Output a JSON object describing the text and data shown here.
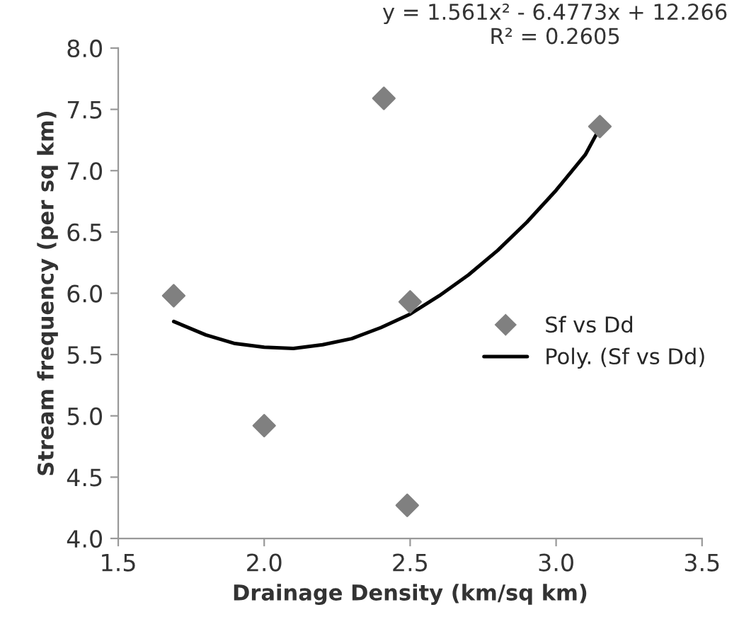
{
  "chart_data": {
    "type": "scatter",
    "xlabel": "Drainage Density (km/sq km)",
    "ylabel": "Stream frequency (per sq km)",
    "xlim": [
      1.5,
      3.5
    ],
    "xticks": [
      {
        "value": 1.5,
        "label": "1.5"
      },
      {
        "value": 2.0,
        "label": "2.0"
      },
      {
        "value": 2.5,
        "label": "2.5"
      },
      {
        "value": 3.0,
        "label": "3.0"
      },
      {
        "value": 3.5,
        "label": "3.5"
      }
    ],
    "ylim": [
      4.0,
      8.0
    ],
    "yticks": [
      {
        "value": 4.0,
        "label": "4.0"
      },
      {
        "value": 4.5,
        "label": "4.5"
      },
      {
        "value": 5.0,
        "label": "5.0"
      },
      {
        "value": 5.5,
        "label": "5.5"
      },
      {
        "value": 6.0,
        "label": "6.0"
      },
      {
        "value": 6.5,
        "label": "6.5"
      },
      {
        "value": 7.0,
        "label": "7.0"
      },
      {
        "value": 7.5,
        "label": "7.5"
      },
      {
        "value": 8.0,
        "label": "8.0"
      }
    ],
    "grid": false,
    "legend": "right",
    "series": [
      {
        "name": "Sf vs Dd",
        "marker": "diamond",
        "color": "#808080",
        "x": [
          1.69,
          2.0,
          2.41,
          2.5,
          2.49,
          3.15
        ],
        "values": [
          5.98,
          4.92,
          7.59,
          5.93,
          4.27,
          7.36
        ]
      },
      {
        "name": "Poly. (Sf vs Dd)",
        "type": "line",
        "marker": "none",
        "line_style": "solid",
        "color": "#000000",
        "x": [
          1.69,
          1.8,
          1.9,
          2.0,
          2.1,
          2.2,
          2.3,
          2.4,
          2.5,
          2.6,
          2.7,
          2.8,
          2.9,
          3.0,
          3.1,
          3.15
        ],
        "values": [
          5.77,
          5.66,
          5.59,
          5.56,
          5.55,
          5.58,
          5.63,
          5.72,
          5.83,
          5.98,
          6.15,
          6.35,
          6.58,
          6.84,
          7.13,
          7.35
        ]
      }
    ],
    "annotations": [
      "y = 1.561x² - 6.4773x + 12.266",
      "R² = 0.2605"
    ]
  }
}
